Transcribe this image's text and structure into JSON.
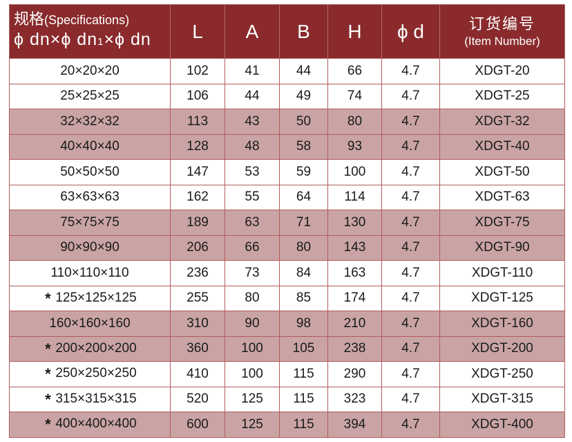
{
  "header": {
    "spec_cn": "规格",
    "spec_en": "(Specifications)",
    "spec_formula_a": "ϕ dn×ϕ dn",
    "spec_formula_sub": "1",
    "spec_formula_b": "×ϕ dn",
    "col_L": "L",
    "col_A": "A",
    "col_B": "B",
    "col_H": "H",
    "col_d": "ϕ d",
    "item_cn": "订货编号",
    "item_en": "(Item Number)"
  },
  "star_symbol": "*",
  "rows": [
    {
      "star": false,
      "spec": "20×20×20",
      "L": "102",
      "A": "41",
      "B": "44",
      "H": "66",
      "d": "4.7",
      "item": "XDGT-20",
      "shade": false
    },
    {
      "star": false,
      "spec": "25×25×25",
      "L": "106",
      "A": "44",
      "B": "49",
      "H": "74",
      "d": "4.7",
      "item": "XDGT-25",
      "shade": false
    },
    {
      "star": false,
      "spec": "32×32×32",
      "L": "113",
      "A": "43",
      "B": "50",
      "H": "80",
      "d": "4.7",
      "item": "XDGT-32",
      "shade": true
    },
    {
      "star": false,
      "spec": "40×40×40",
      "L": "128",
      "A": "48",
      "B": "58",
      "H": "93",
      "d": "4.7",
      "item": "XDGT-40",
      "shade": true
    },
    {
      "star": false,
      "spec": "50×50×50",
      "L": "147",
      "A": "53",
      "B": "59",
      "H": "100",
      "d": "4.7",
      "item": "XDGT-50",
      "shade": false
    },
    {
      "star": false,
      "spec": "63×63×63",
      "L": "162",
      "A": "55",
      "B": "64",
      "H": "114",
      "d": "4.7",
      "item": "XDGT-63",
      "shade": false
    },
    {
      "star": false,
      "spec": "75×75×75",
      "L": "189",
      "A": "63",
      "B": "71",
      "H": "130",
      "d": "4.7",
      "item": "XDGT-75",
      "shade": true
    },
    {
      "star": false,
      "spec": "90×90×90",
      "L": "206",
      "A": "66",
      "B": "80",
      "H": "143",
      "d": "4.7",
      "item": "XDGT-90",
      "shade": true
    },
    {
      "star": false,
      "spec": "110×110×110",
      "L": "236",
      "A": "73",
      "B": "84",
      "H": "163",
      "d": "4.7",
      "item": "XDGT-110",
      "shade": false
    },
    {
      "star": true,
      "spec": "125×125×125",
      "L": "255",
      "A": "80",
      "B": "85",
      "H": "174",
      "d": "4.7",
      "item": "XDGT-125",
      "shade": false
    },
    {
      "star": false,
      "spec": "160×160×160",
      "L": "310",
      "A": "90",
      "B": "98",
      "H": "210",
      "d": "4.7",
      "item": "XDGT-160",
      "shade": true
    },
    {
      "star": true,
      "spec": "200×200×200",
      "L": "360",
      "A": "100",
      "B": "105",
      "H": "238",
      "d": "4.7",
      "item": "XDGT-200",
      "shade": true
    },
    {
      "star": true,
      "spec": "250×250×250",
      "L": "410",
      "A": "100",
      "B": "115",
      "H": "290",
      "d": "4.7",
      "item": "XDGT-250",
      "shade": false
    },
    {
      "star": true,
      "spec": "315×315×315",
      "L": "520",
      "A": "125",
      "B": "115",
      "H": "323",
      "d": "4.7",
      "item": "XDGT-315",
      "shade": false
    },
    {
      "star": true,
      "spec": "400×400×400",
      "L": "600",
      "A": "125",
      "B": "115",
      "H": "394",
      "d": "4.7",
      "item": "XDGT-400",
      "shade": true
    }
  ],
  "colors": {
    "header_bg": "#8a2a2c",
    "shade_bg": "#caa4a4",
    "border": "#b35a5c"
  }
}
